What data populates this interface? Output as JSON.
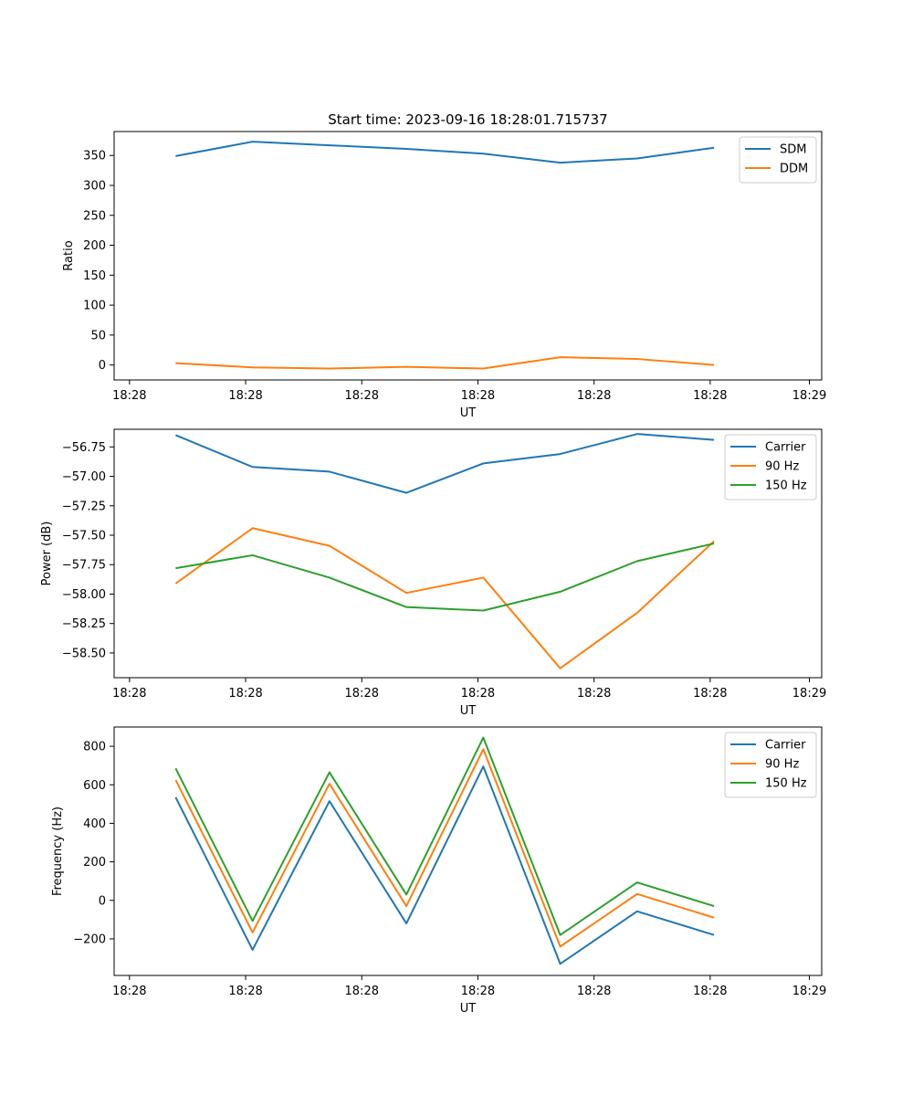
{
  "figure_title": "Start time: 2023-09-16 18:28:01.715737",
  "chart_data": [
    {
      "type": "line",
      "id": "ratio",
      "title": "Start time: 2023-09-16 18:28:01.715737",
      "xlabel": "UT",
      "ylabel": "Ratio",
      "x": [
        1,
        2,
        3,
        4,
        5,
        6,
        7,
        8
      ],
      "xlim": [
        0.2,
        9.4
      ],
      "xticks": [
        0.4,
        1.91,
        3.42,
        4.93,
        6.44,
        7.95,
        9.24
      ],
      "xtick_labels": [
        "18:28",
        "18:28",
        "18:28",
        "18:28",
        "18:28",
        "18:28",
        "18:29"
      ],
      "ylim": [
        -25,
        390
      ],
      "yticks": [
        0,
        50,
        100,
        150,
        200,
        250,
        300,
        350
      ],
      "ytick_labels": [
        "0",
        "50",
        "100",
        "150",
        "200",
        "250",
        "300",
        "350"
      ],
      "legend_position": "top-right",
      "series": [
        {
          "name": "SDM",
          "color": "#1f77b4",
          "values": [
            349,
            373,
            367,
            361,
            353,
            338,
            345,
            363
          ]
        },
        {
          "name": "DDM",
          "color": "#ff7f0e",
          "values": [
            3,
            -4,
            -6,
            -3,
            -6,
            13,
            10,
            0
          ]
        }
      ]
    },
    {
      "type": "line",
      "id": "power",
      "xlabel": "UT",
      "ylabel": "Power (dB)",
      "x": [
        1,
        2,
        3,
        4,
        5,
        6,
        7,
        8
      ],
      "xlim": [
        0.2,
        9.4
      ],
      "xticks": [
        0.4,
        1.91,
        3.42,
        4.93,
        6.44,
        7.95,
        9.24
      ],
      "xtick_labels": [
        "18:28",
        "18:28",
        "18:28",
        "18:28",
        "18:28",
        "18:28",
        "18:29"
      ],
      "ylim": [
        -58.71,
        -56.6
      ],
      "yticks": [
        -56.75,
        -57.0,
        -57.25,
        -57.5,
        -57.75,
        -58.0,
        -58.25,
        -58.5
      ],
      "ytick_labels": [
        "−56.75",
        "−57.00",
        "−57.25",
        "−57.50",
        "−57.75",
        "−58.00",
        "−58.25",
        "−58.50"
      ],
      "legend_position": "top-right",
      "series": [
        {
          "name": "Carrier",
          "color": "#1f77b4",
          "values": [
            -56.65,
            -56.92,
            -56.96,
            -57.14,
            -56.89,
            -56.81,
            -56.64,
            -56.69
          ]
        },
        {
          "name": "90 Hz",
          "color": "#ff7f0e",
          "values": [
            -57.91,
            -57.44,
            -57.59,
            -57.99,
            -57.86,
            -58.63,
            -58.16,
            -57.55
          ]
        },
        {
          "name": "150 Hz",
          "color": "#2ca02c",
          "values": [
            -57.78,
            -57.67,
            -57.86,
            -58.11,
            -58.14,
            -57.98,
            -57.72,
            -57.57
          ]
        }
      ]
    },
    {
      "type": "line",
      "id": "frequency",
      "xlabel": "UT",
      "ylabel": "Frequency (Hz)",
      "x": [
        1,
        2,
        3,
        4,
        5,
        6,
        7,
        8
      ],
      "xlim": [
        0.2,
        9.4
      ],
      "xticks": [
        0.4,
        1.91,
        3.42,
        4.93,
        6.44,
        7.95,
        9.24
      ],
      "xtick_labels": [
        "18:28",
        "18:28",
        "18:28",
        "18:28",
        "18:28",
        "18:28",
        "18:29"
      ],
      "ylim": [
        -390,
        900
      ],
      "yticks": [
        800,
        600,
        400,
        200,
        0,
        -200
      ],
      "ytick_labels": [
        "800",
        "600",
        "400",
        "200",
        "0",
        "−200"
      ],
      "legend_position": "top-right",
      "series": [
        {
          "name": "Carrier",
          "color": "#1f77b4",
          "values": [
            535,
            -257,
            515,
            -120,
            695,
            -330,
            -57,
            -180
          ]
        },
        {
          "name": "90 Hz",
          "color": "#ff7f0e",
          "values": [
            625,
            -167,
            605,
            -30,
            785,
            -240,
            33,
            -90
          ]
        },
        {
          "name": "150 Hz",
          "color": "#2ca02c",
          "values": [
            685,
            -107,
            665,
            30,
            845,
            -180,
            93,
            -30
          ]
        }
      ]
    }
  ]
}
